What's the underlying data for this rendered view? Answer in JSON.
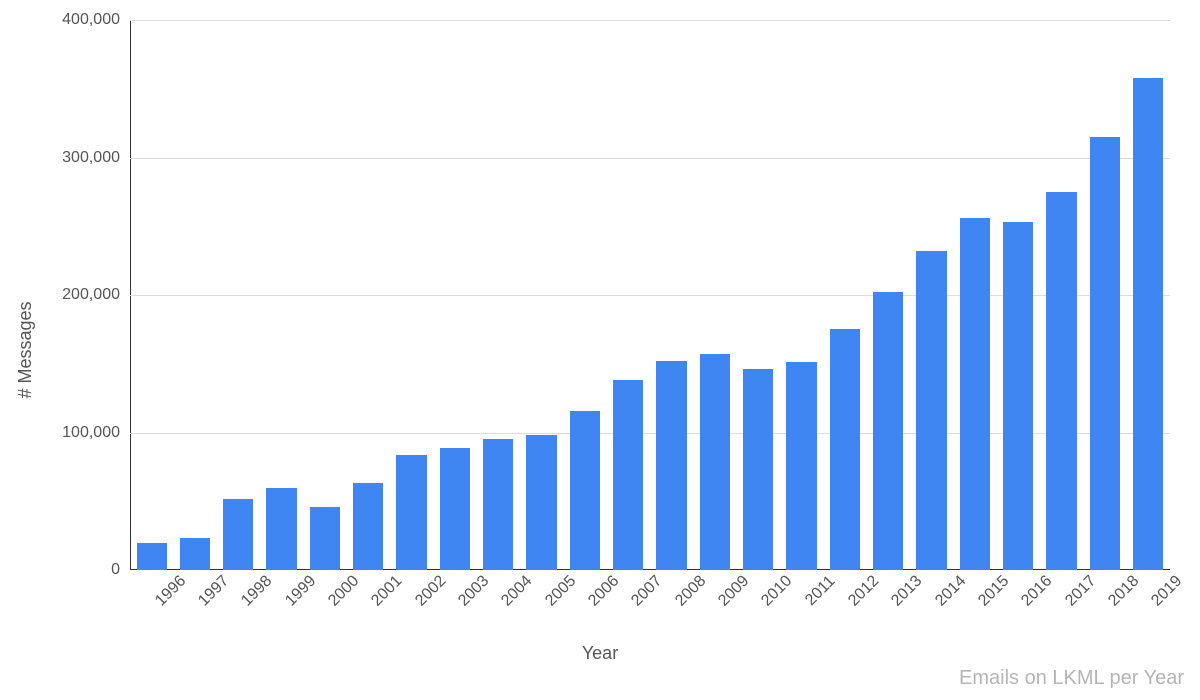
{
  "chart": {
    "type": "bar",
    "ylabel": "# Messages",
    "xlabel": "Year",
    "caption": "Emails on LKML per Year",
    "background_color": "#ffffff",
    "grid_color": "#dddddd",
    "axis_color": "#333333",
    "bar_color": "#3f86f2",
    "label_color": "#555555",
    "caption_color": "#b5b5b5",
    "label_fontsize": 18,
    "tick_fontsize": 16,
    "caption_fontsize": 20,
    "bar_width": 0.7,
    "ylim": [
      0,
      400000
    ],
    "ytick_step": 100000,
    "ytick_labels": [
      "0",
      "100,000",
      "200,000",
      "300,000",
      "400,000"
    ],
    "categories": [
      "1996",
      "1997",
      "1998",
      "1999",
      "2000",
      "2001",
      "2002",
      "2003",
      "2004",
      "2005",
      "2006",
      "2007",
      "2008",
      "2009",
      "2010",
      "2011",
      "2012",
      "2013",
      "2014",
      "2015",
      "2016",
      "2017",
      "2018",
      "2019"
    ],
    "values": [
      20000,
      23000,
      52000,
      60000,
      46000,
      63000,
      84000,
      89000,
      95000,
      98000,
      116000,
      138000,
      152000,
      157000,
      146000,
      151000,
      175000,
      202000,
      232000,
      256000,
      253000,
      275000,
      315000,
      358000
    ]
  }
}
